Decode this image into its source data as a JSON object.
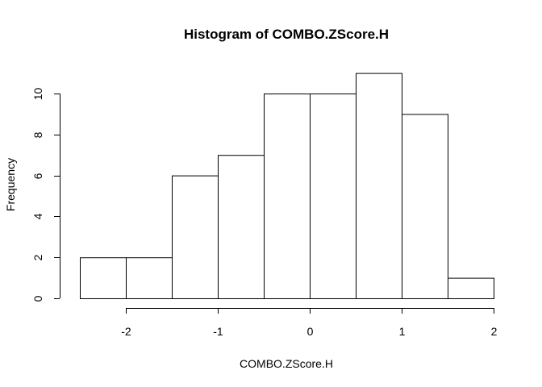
{
  "chart_data": {
    "type": "bar",
    "title": "Histogram of COMBO.ZScore.H",
    "xlabel": "COMBO.ZScore.H",
    "ylabel": "Frequency",
    "bins": [
      {
        "start": -2.5,
        "end": -2.0,
        "count": 2
      },
      {
        "start": -2.0,
        "end": -1.5,
        "count": 2
      },
      {
        "start": -1.5,
        "end": -1.0,
        "count": 6
      },
      {
        "start": -1.0,
        "end": -0.5,
        "count": 7
      },
      {
        "start": -0.5,
        "end": 0.0,
        "count": 10
      },
      {
        "start": 0.0,
        "end": 0.5,
        "count": 10
      },
      {
        "start": 0.5,
        "end": 1.0,
        "count": 11
      },
      {
        "start": 1.0,
        "end": 1.5,
        "count": 9
      },
      {
        "start": 1.5,
        "end": 2.0,
        "count": 1
      }
    ],
    "xticks": [
      -2,
      -1,
      0,
      1,
      2
    ],
    "xtick_labels": [
      "-2",
      "-1",
      "0",
      "1",
      "2"
    ],
    "yticks": [
      0,
      2,
      4,
      6,
      8,
      10
    ],
    "ytick_labels": [
      "0",
      "2",
      "4",
      "6",
      "8",
      "10"
    ],
    "xlim": [
      -2.5,
      2.0
    ],
    "ylim": [
      0,
      11
    ],
    "grid": false
  }
}
